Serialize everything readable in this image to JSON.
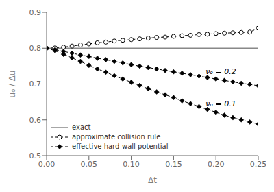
{
  "chart_data": {
    "type": "line",
    "xlabel": "Δt",
    "ylabel": "u₀ / Δu",
    "xlim": [
      0,
      0.25
    ],
    "ylim": [
      0.5,
      0.9
    ],
    "xticks": [
      {
        "value": 0,
        "label": "0.00"
      },
      {
        "value": 0.05,
        "label": "0.05"
      },
      {
        "value": 0.1,
        "label": "0.10"
      },
      {
        "value": 0.15,
        "label": "0.15"
      },
      {
        "value": 0.2,
        "label": "0.20"
      },
      {
        "value": 0.25,
        "label": "0.25"
      }
    ],
    "yticks": [
      0.5,
      0.6,
      0.7,
      0.8,
      0.9
    ],
    "grid": false,
    "legend": "lower left",
    "x": [
      0.0,
      0.01,
      0.02,
      0.03,
      0.04,
      0.05,
      0.06,
      0.07,
      0.08,
      0.09,
      0.1,
      0.11,
      0.12,
      0.13,
      0.14,
      0.15,
      0.16,
      0.17,
      0.18,
      0.19,
      0.2,
      0.21,
      0.22,
      0.23,
      0.24,
      0.25
    ],
    "series": [
      {
        "name": "exact",
        "type": "hline",
        "y": 0.8,
        "color": "#888888",
        "line_style": "solid"
      },
      {
        "name": "approximate collision rule",
        "color": "#000000",
        "line_style": "dashed",
        "marker": "circle_open",
        "values": [
          0.8,
          0.801,
          0.803,
          0.806,
          0.809,
          0.812,
          0.815,
          0.817,
          0.82,
          0.822,
          0.824,
          0.826,
          0.828,
          0.83,
          0.831,
          0.833,
          0.835,
          0.836,
          0.838,
          0.839,
          0.841,
          0.842,
          0.843,
          0.844,
          0.845,
          0.856
        ]
      },
      {
        "name": "effective hard-wall potential",
        "color": "#000000",
        "line_style": "dashed",
        "marker": "diamond",
        "values": [
          0.8,
          0.796,
          0.791,
          0.786,
          0.781,
          0.777,
          0.772,
          0.768,
          0.763,
          0.759,
          0.754,
          0.75,
          0.746,
          0.742,
          0.738,
          0.734,
          0.73,
          0.726,
          0.722,
          0.718,
          0.714,
          0.71,
          0.706,
          0.702,
          0.699,
          0.695
        ]
      },
      {
        "color": "#000000",
        "line_style": "dashed",
        "marker": "diamond",
        "values": [
          0.8,
          0.793,
          0.783,
          0.773,
          0.763,
          0.752,
          0.742,
          0.733,
          0.723,
          0.714,
          0.705,
          0.696,
          0.687,
          0.678,
          0.67,
          0.662,
          0.653,
          0.645,
          0.637,
          0.629,
          0.621,
          0.613,
          0.606,
          0.6,
          0.594,
          0.588
        ]
      }
    ],
    "annotations": [
      {
        "text": "νₒ = 0.2",
        "x": 0.188,
        "y": 0.728,
        "color": "#000000"
      },
      {
        "text": "νₒ = 0.1",
        "x": 0.188,
        "y": 0.638,
        "color": "#000000"
      }
    ]
  }
}
